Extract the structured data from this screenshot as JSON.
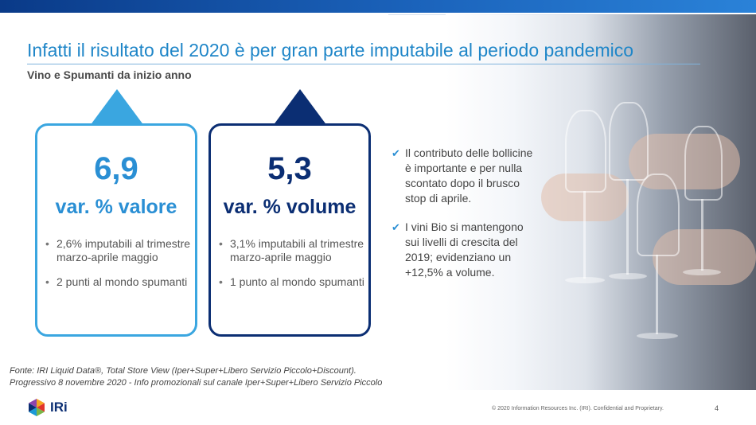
{
  "slide": {
    "title": "Infatti il risultato del 2020 è per gran parte imputabile al periodo pandemico",
    "subtitle": "Vino e Spumanti da inizio anno"
  },
  "cards": [
    {
      "value": "6,9",
      "label": "var. % valore",
      "color": "#3aa6e0",
      "bullets": [
        "2,6% imputabili al trimestre marzo-aprile maggio",
        "2 punti al mondo spumanti"
      ]
    },
    {
      "value": "5,3",
      "label": "var. % volume",
      "color": "#0b2e73",
      "bullets": [
        "3,1% imputabili al trimestre marzo-aprile maggio",
        "1 punto al mondo spumanti"
      ]
    }
  ],
  "checks": [
    "Il contributo delle bollicine è importante e per nulla scontato dopo il brusco stop di aprile.",
    "I vini Bio si mantengono sui livelli di crescita del 2019; evidenziano un +12,5% a volume."
  ],
  "source": {
    "line1": "Fonte: IRI Liquid Data®, Total Store View (Iper+Super+Libero Servizio Piccolo+Discount).",
    "line2": "Progressivo 8 novembre 2020 - Info promozionali sul canale Iper+Super+Libero Servizio Piccolo"
  },
  "footer": {
    "logo_text": "IRi",
    "copyright": "© 2020 Information Resources Inc. (IRI). Confidential and Proprietary.",
    "page_number": "4"
  },
  "colors": {
    "accent_light": "#3aa6e0",
    "accent_dark": "#0b2e73",
    "title": "#1f86c8"
  },
  "icons": {
    "check": "checkmark-icon",
    "logo": "iri-logo-icon"
  }
}
